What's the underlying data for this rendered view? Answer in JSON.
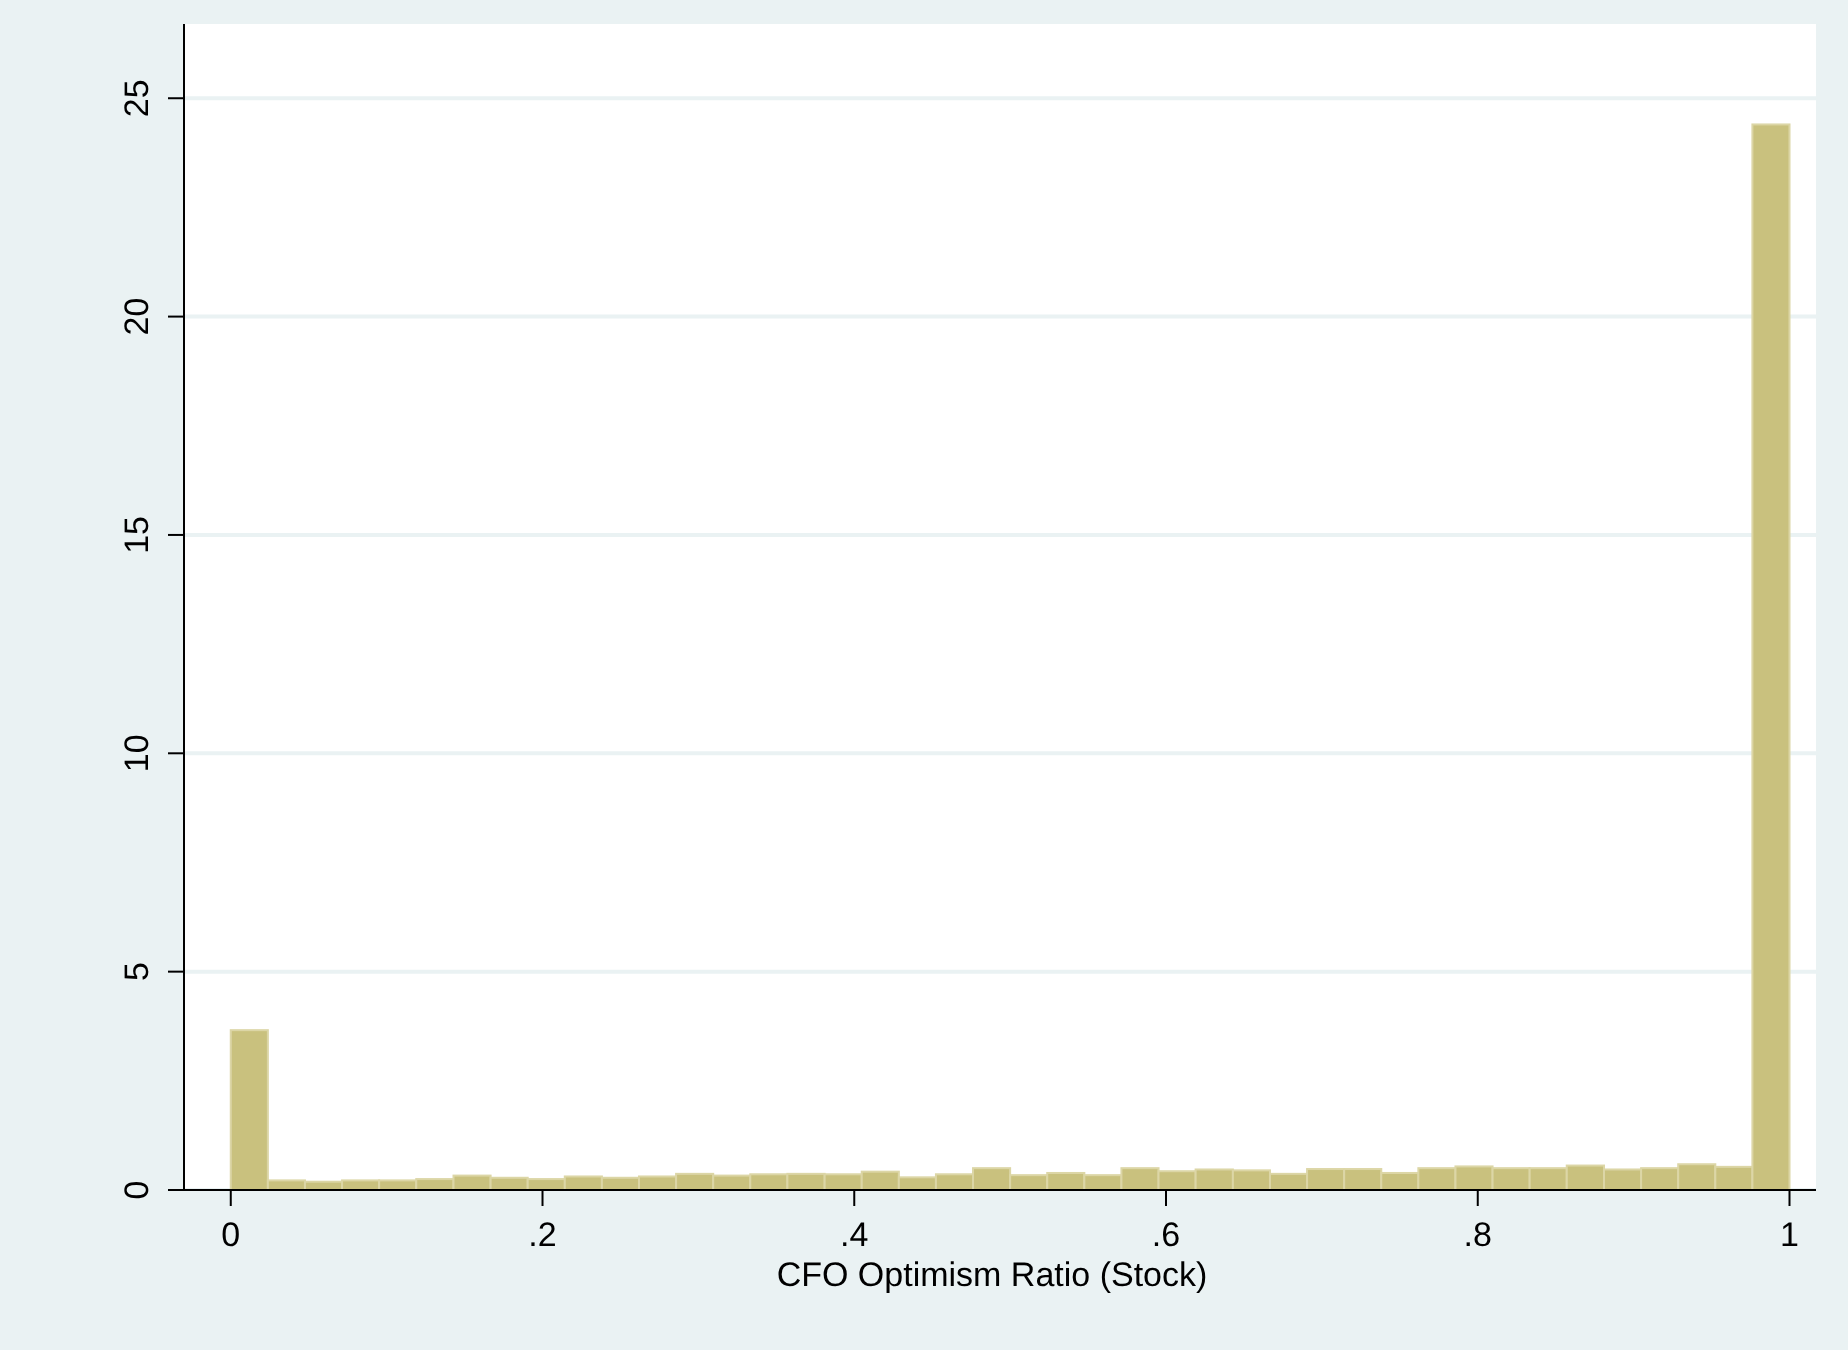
{
  "chart_data": {
    "type": "histogram",
    "xlabel": "CFO Optimism Ratio (Stock)",
    "bins": [
      0,
      0.0238,
      0.0476,
      0.0714,
      0.0952,
      0.119,
      0.1429,
      0.1667,
      0.1905,
      0.2143,
      0.2381,
      0.2619,
      0.2857,
      0.3095,
      0.3333,
      0.3571,
      0.381,
      0.4048,
      0.4286,
      0.4524,
      0.4762,
      0.5,
      0.5238,
      0.5476,
      0.5714,
      0.5952,
      0.619,
      0.6429,
      0.6667,
      0.6905,
      0.7143,
      0.7381,
      0.7619,
      0.7857,
      0.8095,
      0.8333,
      0.8571,
      0.881,
      0.9048,
      0.9286,
      0.9524,
      0.9762,
      1
    ],
    "values": [
      3.66,
      0.22,
      0.19,
      0.22,
      0.22,
      0.25,
      0.33,
      0.28,
      0.25,
      0.31,
      0.28,
      0.31,
      0.37,
      0.33,
      0.36,
      0.37,
      0.36,
      0.42,
      0.29,
      0.36,
      0.5,
      0.34,
      0.39,
      0.34,
      0.5,
      0.43,
      0.47,
      0.45,
      0.37,
      0.48,
      0.48,
      0.39,
      0.5,
      0.54,
      0.5,
      0.5,
      0.56,
      0.47,
      0.5,
      0.59,
      0.53,
      24.4
    ],
    "color": "#c9c17e",
    "xlim": [
      -0.03,
      1.017
    ],
    "xticks": [
      0,
      {
        "value": 0.2,
        "label": ".2"
      },
      {
        "value": 0.4,
        "label": ".4"
      },
      {
        "value": 0.6,
        "label": ".6"
      },
      {
        "value": 0.8,
        "label": ".8"
      },
      1
    ],
    "ylim": [
      0,
      26.7
    ],
    "yticks": [
      0,
      5,
      10,
      15,
      20,
      25
    ],
    "grid": "y"
  }
}
